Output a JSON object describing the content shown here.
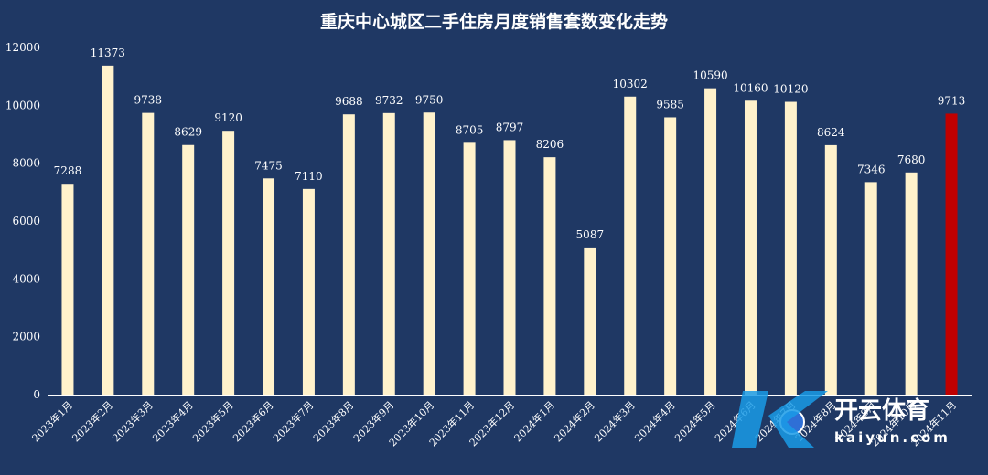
{
  "chart_data": {
    "type": "bar",
    "title": "重庆中心城区二手住房月度销售套数变化走势",
    "xlabel": "",
    "ylabel": "",
    "ylim": [
      0,
      12000
    ],
    "yticks": [
      0,
      2000,
      4000,
      6000,
      8000,
      10000,
      12000
    ],
    "grid": false,
    "legend": "none",
    "categories": [
      "2023年1月",
      "2023年2月",
      "2023年3月",
      "2023年4月",
      "2023年5月",
      "2023年6月",
      "2023年7月",
      "2023年8月",
      "2023年9月",
      "2023年10月",
      "2023年11月",
      "2023年12月",
      "2024年1月",
      "2024年2月",
      "2024年3月",
      "2024年4月",
      "2024年5月",
      "2024年6月",
      "2024年7月",
      "2024年8月",
      "2024年9月",
      "2024年10月",
      "2024年11月"
    ],
    "values": [
      7288,
      11373,
      9738,
      8629,
      9120,
      7475,
      7110,
      9688,
      9732,
      9750,
      8705,
      8797,
      8206,
      5087,
      10302,
      9585,
      10590,
      10160,
      10120,
      8624,
      7346,
      7680,
      9713
    ],
    "data_labels": [
      "7288",
      "11373",
      "9738",
      "8629",
      "9120",
      "7475",
      "7110",
      "9688",
      "9732",
      "9750",
      "8705",
      "8797",
      "8206",
      "5087",
      "10302",
      "9585",
      "10590",
      "10160",
      "10120",
      "8624",
      "7346",
      "7680",
      "9713"
    ],
    "colors": {
      "bar": "#fff2cc",
      "highlight": "#c00000",
      "background": "#1f3864",
      "text": "#ffffff"
    },
    "highlight_index": 22
  },
  "watermark": {
    "brand": "开云体育",
    "sub": "kaiyun.com",
    "icon": "soccer-ball-icon"
  }
}
